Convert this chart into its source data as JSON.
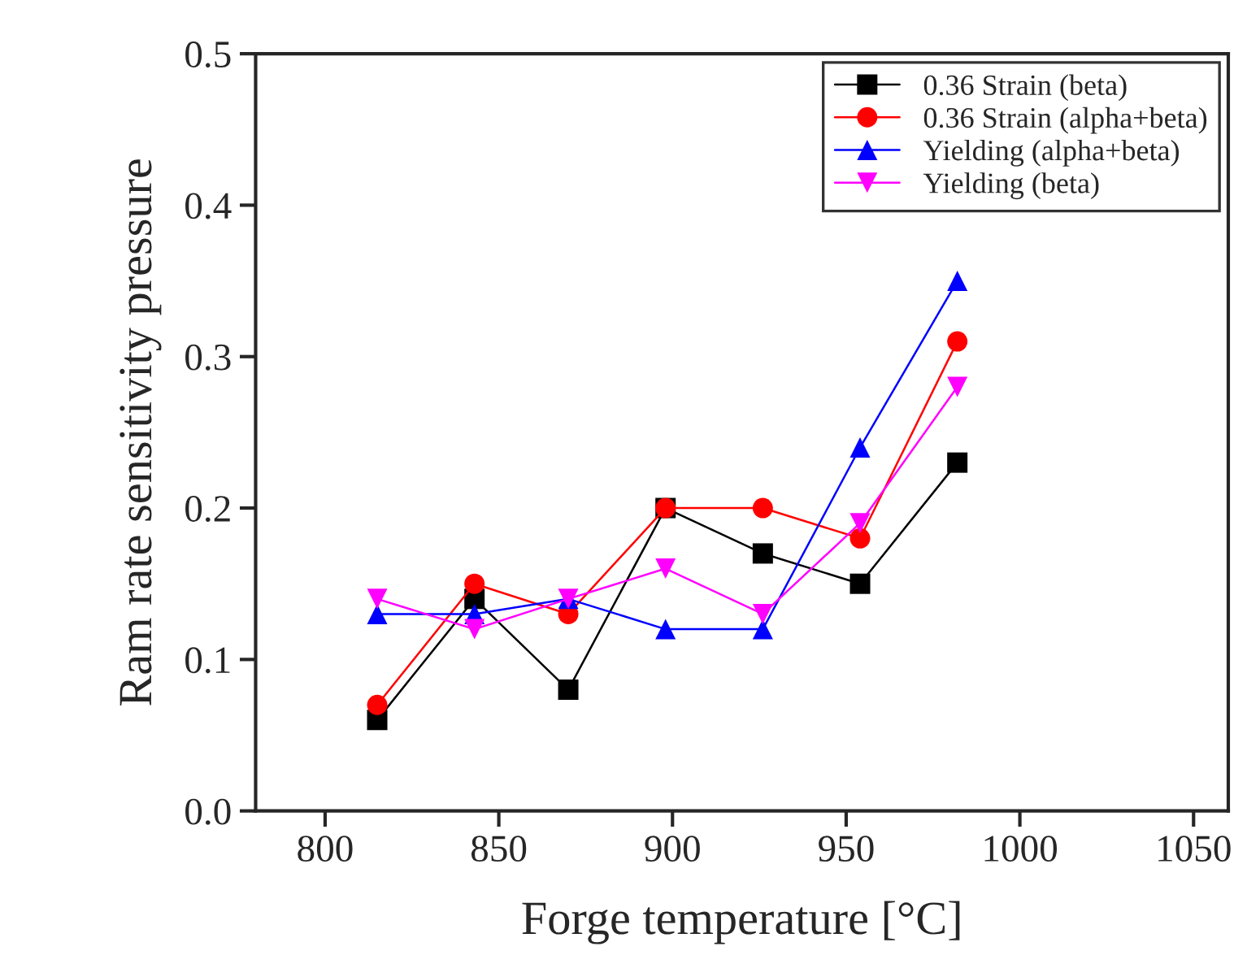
{
  "chart_data": {
    "type": "line",
    "xlabel": "Forge temperature [°C]",
    "ylabel": "Ram rate sensitivity pressure",
    "x": [
      815,
      843,
      870,
      898,
      926,
      954,
      982
    ],
    "series": [
      {
        "name": "0.36 Strain (beta)",
        "color": "#000000",
        "marker": "square",
        "values": [
          0.06,
          0.14,
          0.08,
          0.2,
          0.17,
          0.15,
          0.23
        ]
      },
      {
        "name": "0.36 Strain (alpha+beta)",
        "color": "#ff0000",
        "marker": "circle",
        "values": [
          0.07,
          0.15,
          0.13,
          0.2,
          0.2,
          0.18,
          0.31
        ]
      },
      {
        "name": "Yielding (alpha+beta)",
        "color": "#0000ff",
        "marker": "triangle",
        "values": [
          0.13,
          0.13,
          0.14,
          0.12,
          0.12,
          0.24,
          0.35
        ]
      },
      {
        "name": "Yielding (beta)",
        "color": "#ff00ff",
        "marker": "triangle_down",
        "values": [
          0.14,
          0.12,
          0.14,
          0.16,
          0.13,
          0.19,
          0.28
        ]
      }
    ],
    "xlim": [
      780,
      1060
    ],
    "xticks": [
      800,
      850,
      900,
      950,
      1000,
      1050
    ],
    "ylim": [
      0,
      0.5
    ],
    "yticks": [
      {
        "value": 0,
        "label": "0.0"
      },
      {
        "value": 0.1,
        "label": "0.1"
      },
      {
        "value": 0.2,
        "label": "0.2"
      },
      {
        "value": 0.3,
        "label": "0.3"
      },
      {
        "value": 0.4,
        "label": "0.4"
      },
      {
        "value": 0.5,
        "label": "0.5"
      }
    ],
    "legend": "top right",
    "grid": false
  }
}
